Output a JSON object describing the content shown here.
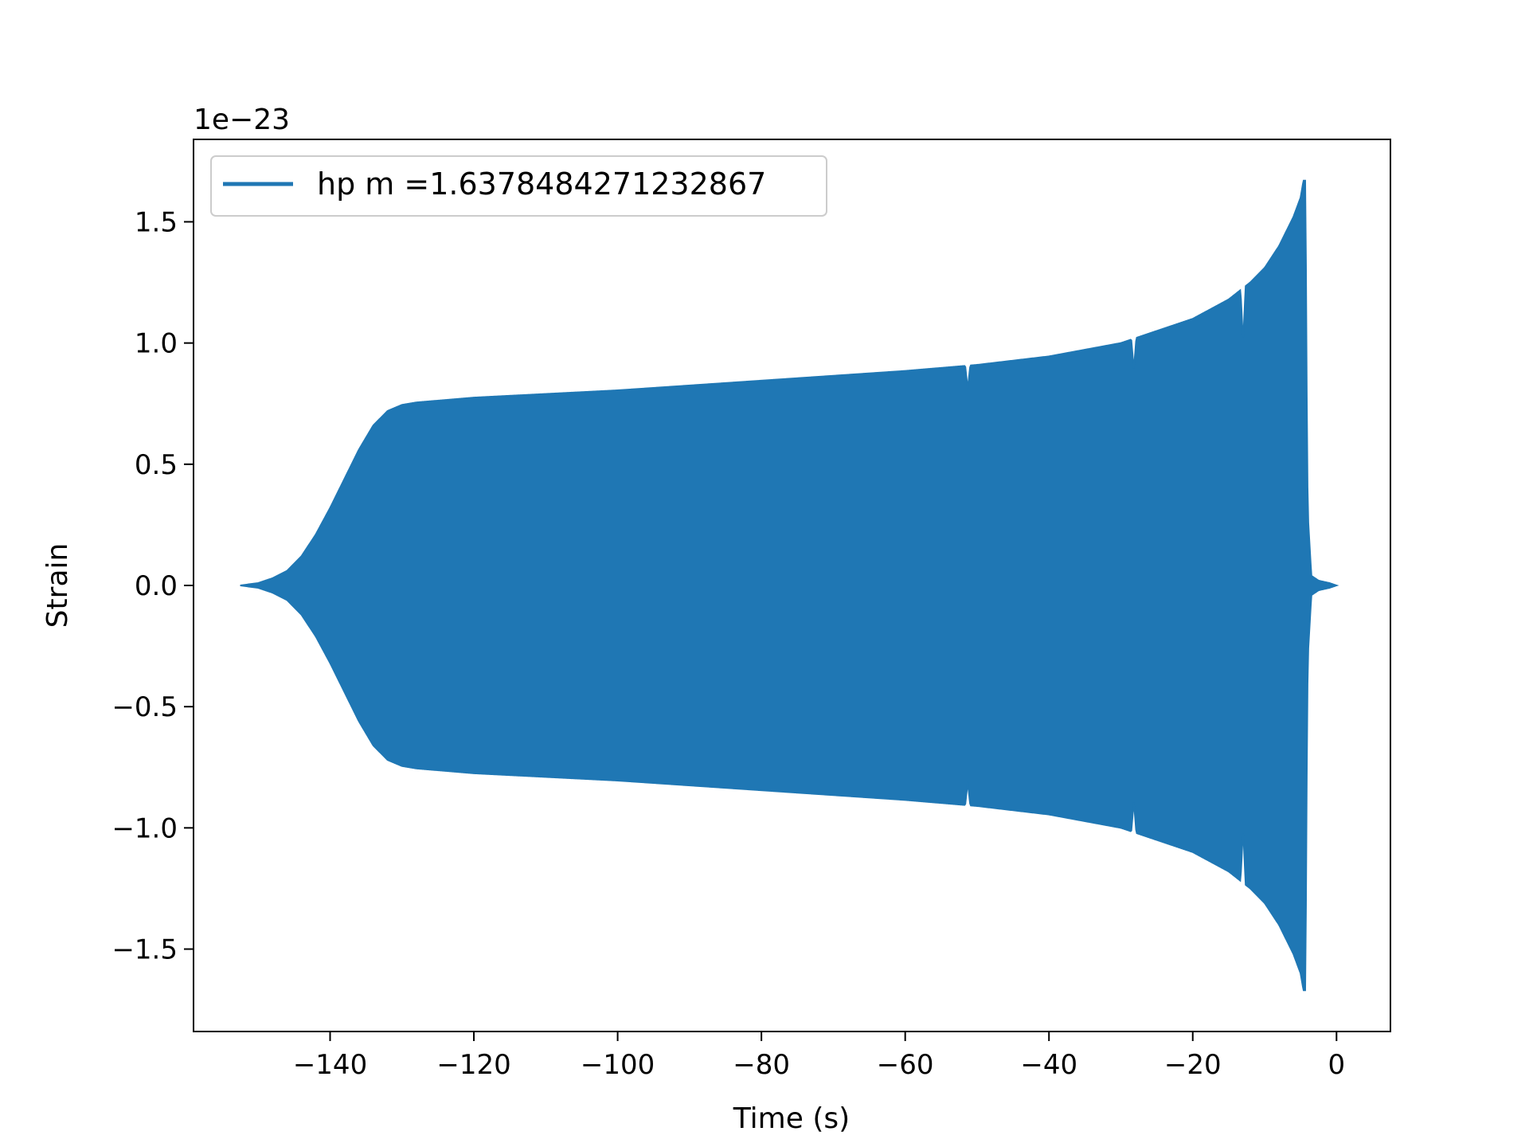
{
  "chart_data": {
    "type": "line",
    "xlabel": "Time (s)",
    "ylabel": "Strain",
    "y_offset_label": "1e−23",
    "xlim": [
      -159,
      7.5
    ],
    "ylim": [
      -1.84,
      1.84
    ],
    "x_ticks": [
      {
        "value": -140,
        "label": "−140"
      },
      {
        "value": -120,
        "label": "−120"
      },
      {
        "value": -100,
        "label": "−100"
      },
      {
        "value": -80,
        "label": "−80"
      },
      {
        "value": -60,
        "label": "−60"
      },
      {
        "value": -40,
        "label": "−40"
      },
      {
        "value": -20,
        "label": "−20"
      },
      {
        "value": 0,
        "label": "0"
      }
    ],
    "y_ticks": [
      {
        "value": -1.5,
        "label": "−1.5"
      },
      {
        "value": -1.0,
        "label": "−1.0"
      },
      {
        "value": -0.5,
        "label": "−0.5"
      },
      {
        "value": 0.0,
        "label": "0.0"
      },
      {
        "value": 0.5,
        "label": "0.5"
      },
      {
        "value": 1.0,
        "label": "1.0"
      },
      {
        "value": 1.5,
        "label": "1.5"
      }
    ],
    "grid": false,
    "legend_position": "upper-left",
    "series": [
      {
        "name": "hp m =1.6378484271232867",
        "color": "#1f77b4",
        "envelope": {
          "x": [
            -152.5,
            -150,
            -148,
            -146,
            -144,
            -142,
            -140,
            -138,
            -136,
            -134,
            -132,
            -130,
            -128,
            -124,
            -120,
            -110,
            -100,
            -90,
            -80,
            -70,
            -60,
            -50,
            -40,
            -30,
            -25,
            -20,
            -15,
            -12,
            -10,
            -8,
            -6,
            -5,
            -4.6,
            -4.3,
            -4.2,
            -4.0,
            -3.5,
            -2.5,
            -1.0,
            0.0
          ],
          "amplitude": [
            0.0,
            0.01,
            0.03,
            0.06,
            0.12,
            0.21,
            0.32,
            0.44,
            0.56,
            0.66,
            0.72,
            0.745,
            0.755,
            0.765,
            0.775,
            0.79,
            0.805,
            0.825,
            0.845,
            0.865,
            0.885,
            0.91,
            0.945,
            1.0,
            1.05,
            1.1,
            1.18,
            1.25,
            1.31,
            1.4,
            1.52,
            1.6,
            1.67,
            1.67,
            1.0,
            0.3,
            0.04,
            0.02,
            0.01,
            0.0
          ]
        },
        "dips": [
          {
            "x": -51.3,
            "amplitude": 0.81
          },
          {
            "x": -28.2,
            "amplitude": 0.89
          },
          {
            "x": -13.0,
            "amplitude": 1.0
          }
        ]
      }
    ]
  }
}
